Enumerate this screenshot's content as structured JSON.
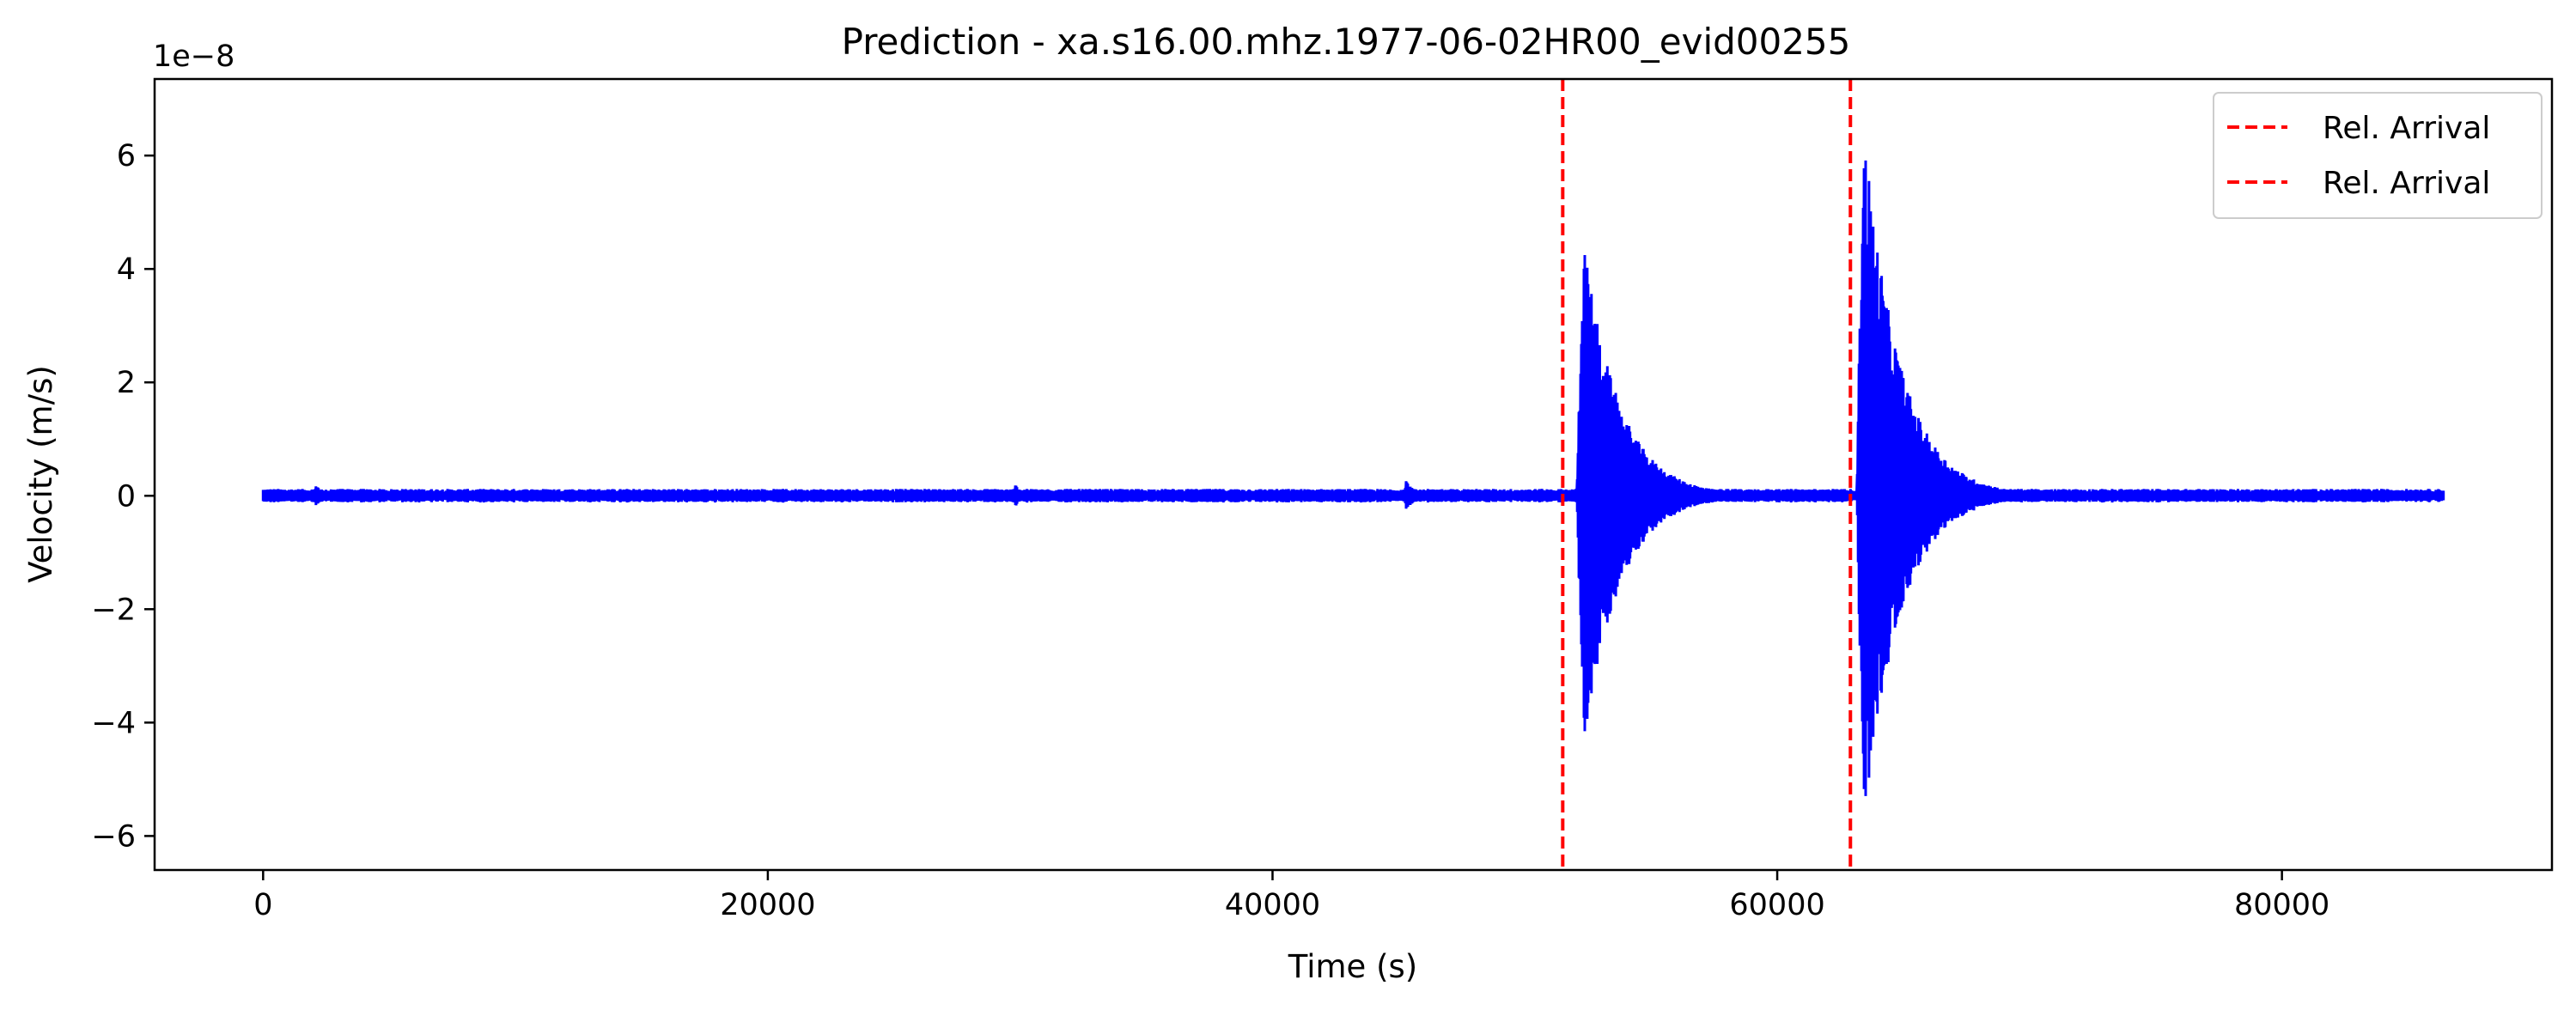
{
  "chart_data": {
    "type": "line",
    "title": "Prediction - xa.s16.00.mhz.1977-06-02HR00_evid00255",
    "xlabel": "Time (s)",
    "ylabel": "Velocity (m/s)",
    "y_offset_text": "1e−8",
    "y_scale": 1e-08,
    "xlim": [
      -4300,
      90700
    ],
    "ylim": [
      -6.6,
      7.35
    ],
    "x_ticks": [
      0,
      20000,
      40000,
      60000,
      80000
    ],
    "x_tick_labels": [
      "0",
      "20000",
      "40000",
      "60000",
      "80000"
    ],
    "y_ticks": [
      -6,
      -4,
      -2,
      0,
      2,
      4,
      6
    ],
    "y_tick_labels": [
      "−6",
      "−4",
      "−2",
      "0",
      "2",
      "4",
      "6"
    ],
    "grid": false,
    "legend_position": "top-right",
    "series": [
      {
        "name": "",
        "color": "#0000ff",
        "kind": "seismic trace",
        "x_start": 0,
        "x_end": 86400,
        "noise_amplitude": 0.12,
        "events": [
          {
            "x": 2100,
            "amplitude": 0.2
          },
          {
            "x": 29800,
            "amplitude": 0.2
          },
          {
            "x": 45300,
            "amplitude": 0.3
          },
          {
            "x": 52300,
            "amplitude": 4.6,
            "min": -4.5
          },
          {
            "x": 63400,
            "amplitude": 6.7,
            "min": -6.0
          }
        ]
      }
    ],
    "vlines": [
      {
        "name": "Rel. Arrival",
        "x": 51500,
        "color": "#ff0000",
        "style": "dashed"
      },
      {
        "name": "Rel. Arrival",
        "x": 62900,
        "color": "#ff0000",
        "style": "dashed"
      }
    ]
  }
}
